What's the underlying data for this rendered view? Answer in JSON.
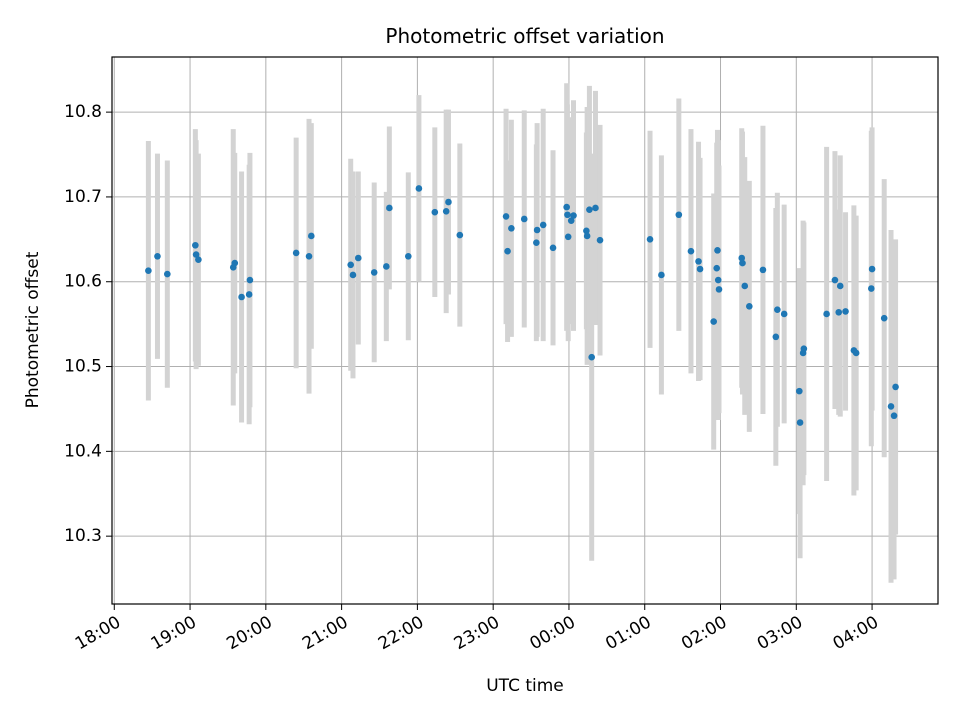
{
  "chart_data": {
    "type": "scatter",
    "title": "Photometric offset variation",
    "xlabel": "UTC time",
    "ylabel": "Photometric offset",
    "x_unit": "hours UTC (values of 24 or more are after midnight)",
    "xlim": [
      17.97,
      28.87
    ],
    "ylim": [
      10.22,
      10.865
    ],
    "grid": true,
    "x_ticks": [
      {
        "x": 18,
        "label": "18:00"
      },
      {
        "x": 19,
        "label": "19:00"
      },
      {
        "x": 20,
        "label": "20:00"
      },
      {
        "x": 21,
        "label": "21:00"
      },
      {
        "x": 22,
        "label": "22:00"
      },
      {
        "x": 23,
        "label": "23:00"
      },
      {
        "x": 24,
        "label": "00:00"
      },
      {
        "x": 25,
        "label": "01:00"
      },
      {
        "x": 26,
        "label": "02:00"
      },
      {
        "x": 27,
        "label": "03:00"
      },
      {
        "x": 28,
        "label": "04:00"
      }
    ],
    "y_ticks": [
      {
        "y": 10.3,
        "label": "10.3"
      },
      {
        "y": 10.4,
        "label": "10.4"
      },
      {
        "y": 10.5,
        "label": "10.5"
      },
      {
        "y": 10.6,
        "label": "10.6"
      },
      {
        "y": 10.7,
        "label": "10.7"
      },
      {
        "y": 10.8,
        "label": "10.8"
      }
    ],
    "point_color": "#1f77b4",
    "errorbar_color": "#d3d3d3",
    "points": [
      {
        "x": 18.45,
        "y": 10.613,
        "err": 0.153
      },
      {
        "x": 18.57,
        "y": 10.63,
        "err": 0.121
      },
      {
        "x": 18.7,
        "y": 10.609,
        "err": 0.134
      },
      {
        "x": 19.07,
        "y": 10.643,
        "err": 0.137
      },
      {
        "x": 19.08,
        "y": 10.632,
        "err": 0.135
      },
      {
        "x": 19.11,
        "y": 10.626,
        "err": 0.125
      },
      {
        "x": 19.57,
        "y": 10.617,
        "err": 0.163
      },
      {
        "x": 19.59,
        "y": 10.622,
        "err": 0.13
      },
      {
        "x": 19.68,
        "y": 10.582,
        "err": 0.148
      },
      {
        "x": 19.78,
        "y": 10.585,
        "err": 0.153
      },
      {
        "x": 19.79,
        "y": 10.602,
        "err": 0.15
      },
      {
        "x": 20.4,
        "y": 10.634,
        "err": 0.136
      },
      {
        "x": 20.57,
        "y": 10.63,
        "err": 0.162
      },
      {
        "x": 20.6,
        "y": 10.654,
        "err": 0.133
      },
      {
        "x": 21.12,
        "y": 10.62,
        "err": 0.125
      },
      {
        "x": 21.15,
        "y": 10.608,
        "err": 0.122
      },
      {
        "x": 21.22,
        "y": 10.628,
        "err": 0.102
      },
      {
        "x": 21.43,
        "y": 10.611,
        "err": 0.106
      },
      {
        "x": 21.59,
        "y": 10.618,
        "err": 0.088
      },
      {
        "x": 21.63,
        "y": 10.687,
        "err": 0.096
      },
      {
        "x": 21.88,
        "y": 10.63,
        "err": 0.099
      },
      {
        "x": 22.02,
        "y": 10.71,
        "err": 0.11
      },
      {
        "x": 22.23,
        "y": 10.682,
        "err": 0.1
      },
      {
        "x": 22.38,
        "y": 10.683,
        "err": 0.12
      },
      {
        "x": 22.41,
        "y": 10.694,
        "err": 0.109
      },
      {
        "x": 22.56,
        "y": 10.655,
        "err": 0.108
      },
      {
        "x": 23.17,
        "y": 10.677,
        "err": 0.127
      },
      {
        "x": 23.19,
        "y": 10.636,
        "err": 0.107
      },
      {
        "x": 23.24,
        "y": 10.663,
        "err": 0.128
      },
      {
        "x": 23.41,
        "y": 10.674,
        "err": 0.128
      },
      {
        "x": 23.57,
        "y": 10.646,
        "err": 0.116
      },
      {
        "x": 23.58,
        "y": 10.661,
        "err": 0.126
      },
      {
        "x": 23.66,
        "y": 10.667,
        "err": 0.137
      },
      {
        "x": 23.79,
        "y": 10.64,
        "err": 0.115
      },
      {
        "x": 23.97,
        "y": 10.688,
        "err": 0.146
      },
      {
        "x": 23.98,
        "y": 10.679,
        "err": 0.13
      },
      {
        "x": 23.99,
        "y": 10.653,
        "err": 0.123
      },
      {
        "x": 24.03,
        "y": 10.672,
        "err": 0.122
      },
      {
        "x": 24.06,
        "y": 10.678,
        "err": 0.136
      },
      {
        "x": 24.23,
        "y": 10.66,
        "err": 0.116
      },
      {
        "x": 24.24,
        "y": 10.654,
        "err": 0.152
      },
      {
        "x": 24.27,
        "y": 10.685,
        "err": 0.146
      },
      {
        "x": 24.3,
        "y": 10.511,
        "err": 0.24
      },
      {
        "x": 24.35,
        "y": 10.687,
        "err": 0.138
      },
      {
        "x": 24.41,
        "y": 10.649,
        "err": 0.136
      },
      {
        "x": 25.07,
        "y": 10.65,
        "err": 0.128
      },
      {
        "x": 25.22,
        "y": 10.608,
        "err": 0.141
      },
      {
        "x": 25.45,
        "y": 10.679,
        "err": 0.137
      },
      {
        "x": 25.61,
        "y": 10.636,
        "err": 0.144
      },
      {
        "x": 25.71,
        "y": 10.624,
        "err": 0.141
      },
      {
        "x": 25.73,
        "y": 10.615,
        "err": 0.131
      },
      {
        "x": 25.91,
        "y": 10.553,
        "err": 0.151
      },
      {
        "x": 25.95,
        "y": 10.616,
        "err": 0.148
      },
      {
        "x": 25.96,
        "y": 10.637,
        "err": 0.142
      },
      {
        "x": 25.97,
        "y": 10.602,
        "err": 0.165
      },
      {
        "x": 25.98,
        "y": 10.591,
        "err": 0.146
      },
      {
        "x": 26.28,
        "y": 10.628,
        "err": 0.153
      },
      {
        "x": 26.29,
        "y": 10.622,
        "err": 0.155
      },
      {
        "x": 26.32,
        "y": 10.595,
        "err": 0.152
      },
      {
        "x": 26.38,
        "y": 10.571,
        "err": 0.148
      },
      {
        "x": 26.56,
        "y": 10.614,
        "err": 0.17
      },
      {
        "x": 26.73,
        "y": 10.535,
        "err": 0.152
      },
      {
        "x": 26.75,
        "y": 10.567,
        "err": 0.138
      },
      {
        "x": 26.84,
        "y": 10.562,
        "err": 0.129
      },
      {
        "x": 27.04,
        "y": 10.471,
        "err": 0.145
      },
      {
        "x": 27.05,
        "y": 10.434,
        "err": 0.16
      },
      {
        "x": 27.09,
        "y": 10.516,
        "err": 0.156
      },
      {
        "x": 27.1,
        "y": 10.521,
        "err": 0.149
      },
      {
        "x": 27.4,
        "y": 10.562,
        "err": 0.197
      },
      {
        "x": 27.51,
        "y": 10.602,
        "err": 0.152
      },
      {
        "x": 27.56,
        "y": 10.564,
        "err": 0.121
      },
      {
        "x": 27.58,
        "y": 10.595,
        "err": 0.154
      },
      {
        "x": 27.65,
        "y": 10.565,
        "err": 0.117
      },
      {
        "x": 27.76,
        "y": 10.519,
        "err": 0.171
      },
      {
        "x": 27.79,
        "y": 10.516,
        "err": 0.162
      },
      {
        "x": 27.99,
        "y": 10.592,
        "err": 0.186
      },
      {
        "x": 28.0,
        "y": 10.615,
        "err": 0.167
      },
      {
        "x": 28.16,
        "y": 10.557,
        "err": 0.164
      },
      {
        "x": 28.25,
        "y": 10.453,
        "err": 0.208
      },
      {
        "x": 28.29,
        "y": 10.442,
        "err": 0.193
      },
      {
        "x": 28.31,
        "y": 10.476,
        "err": 0.174
      }
    ]
  }
}
